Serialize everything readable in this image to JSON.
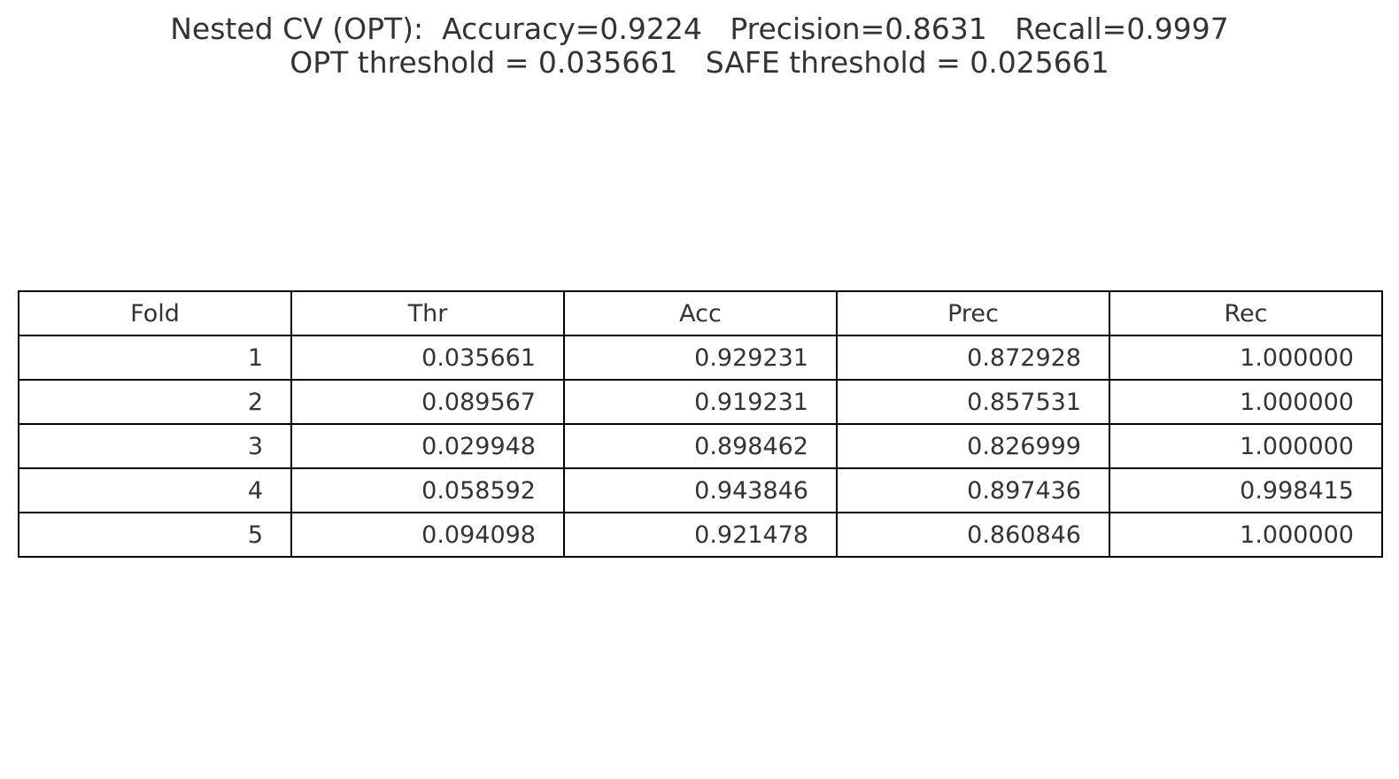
{
  "chart_data": {
    "type": "table",
    "title": "Nested CV (OPT):  Accuracy=0.9224   Precision=0.8631   Recall=0.9997",
    "subtitle": "OPT threshold = 0.035661   SAFE threshold = 0.025661",
    "columns": [
      "Fold",
      "Thr",
      "Acc",
      "Prec",
      "Rec"
    ],
    "rows": [
      [
        "1",
        "0.035661",
        "0.929231",
        "0.872928",
        "1.000000"
      ],
      [
        "2",
        "0.089567",
        "0.919231",
        "0.857531",
        "1.000000"
      ],
      [
        "3",
        "0.029948",
        "0.898462",
        "0.826999",
        "1.000000"
      ],
      [
        "4",
        "0.058592",
        "0.943846",
        "0.897436",
        "0.998415"
      ],
      [
        "5",
        "0.094098",
        "0.921478",
        "0.860846",
        "1.000000"
      ]
    ],
    "summary": {
      "accuracy": 0.9224,
      "precision": 0.8631,
      "recall": 0.9997,
      "opt_threshold": 0.035661,
      "safe_threshold": 0.025661
    }
  }
}
